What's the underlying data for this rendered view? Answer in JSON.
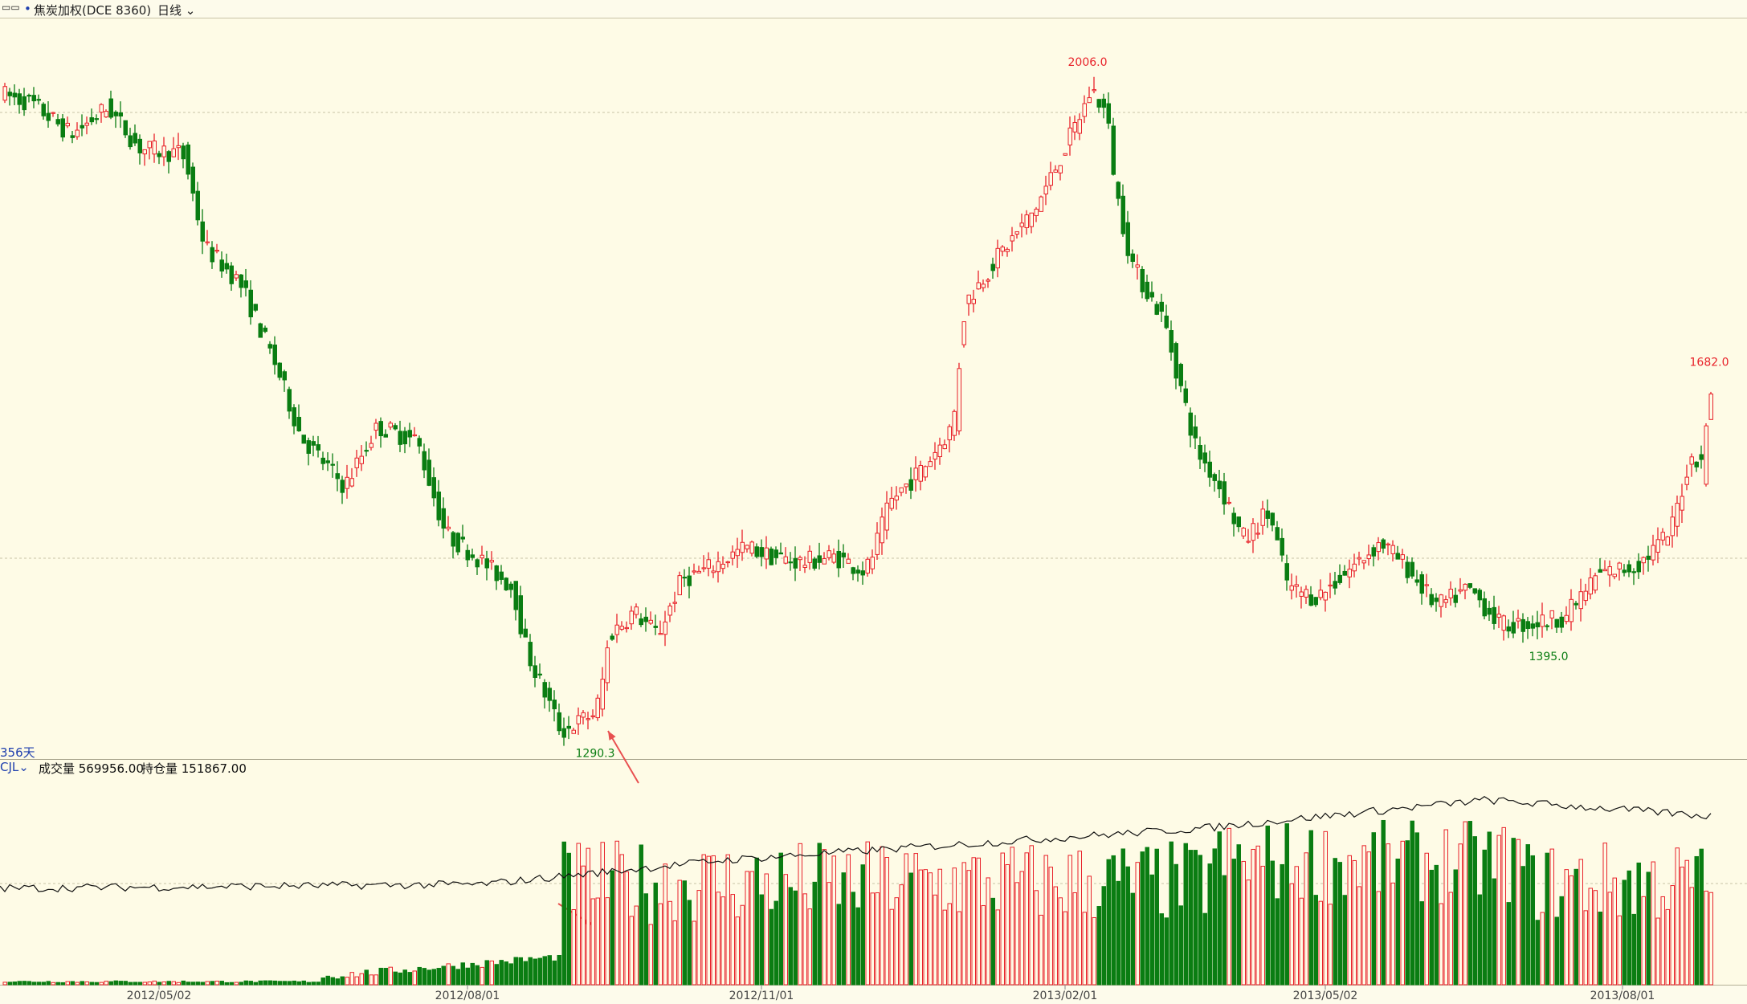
{
  "toolbar": {
    "icon": "grid-icon",
    "symbol": "焦炭加权(DCE 8360)",
    "period": "日线"
  },
  "colors": {
    "up": "#e8222a",
    "down": "#0a7d12",
    "bg": "#fefbe6",
    "oi_line": "#111111",
    "grid": "#c8c3a6"
  },
  "price_panel": {
    "days_label": "356天"
  },
  "volume_panel": {
    "indicator": "CJL",
    "volume_label": "成交量 569956.00",
    "oi_label": "持仓量 151867.00"
  },
  "chart_data": {
    "type": "candlestick",
    "y_range": [
      1270,
      2060
    ],
    "annotations": [
      {
        "label": "2006.0",
        "value": 2006.0,
        "kind": "high"
      },
      {
        "label": "1290.3",
        "value": 1290.3,
        "kind": "low"
      },
      {
        "label": "1395.0",
        "value": 1395.0,
        "kind": "low"
      },
      {
        "label": "1682.0",
        "value": 1682.0,
        "kind": "last-high"
      }
    ],
    "x_ticks": [
      "2012/05/02",
      "2012/08/01",
      "2012/11/01",
      "2013/02/01",
      "2013/05/02",
      "2013/08/01"
    ],
    "volume_shown": 569956.0,
    "open_interest_shown": 151867.0
  }
}
